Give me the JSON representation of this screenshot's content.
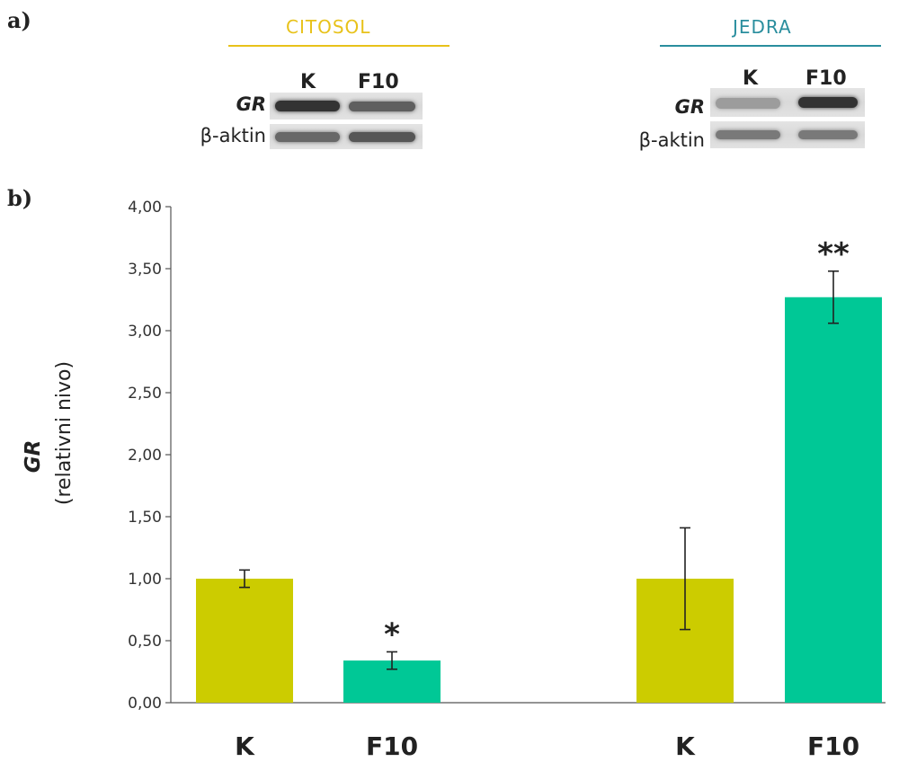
{
  "panels": {
    "a": "a)",
    "b": "b)"
  },
  "blots": [
    {
      "title": "CITOSOL",
      "title_color": "#e8c21a",
      "lanes": [
        "K",
        "F10"
      ],
      "rows": [
        {
          "label": "GR",
          "intensities": [
            0.85,
            0.6
          ]
        },
        {
          "label": "β-aktin",
          "intensities": [
            0.55,
            0.65
          ]
        }
      ]
    },
    {
      "title": "JEDRA",
      "title_color": "#2a8e9e",
      "lanes": [
        "K",
        "F10"
      ],
      "rows": [
        {
          "label": "GR",
          "intensities": [
            0.25,
            0.85
          ]
        },
        {
          "label": "β-aktin",
          "intensities": [
            0.45,
            0.45
          ]
        }
      ]
    }
  ],
  "chart_data": {
    "type": "bar",
    "categories": [
      "K",
      "F10",
      "K",
      "F10"
    ],
    "values": [
      1.0,
      0.34,
      1.0,
      3.27
    ],
    "errors": [
      0.07,
      0.07,
      0.41,
      0.21
    ],
    "colors": [
      "#cccc00",
      "#00c896",
      "#cccc00",
      "#00c896"
    ],
    "significance": [
      "",
      "*",
      "",
      "**"
    ],
    "ylabel": "GR",
    "ylabel_sub": "(relativni nivo)",
    "ylim": [
      0,
      4
    ],
    "yticks": [
      "0,00",
      "0,50",
      "1,00",
      "1,50",
      "2,00",
      "2,50",
      "3,00",
      "3,50",
      "4,00"
    ],
    "grid": false
  }
}
